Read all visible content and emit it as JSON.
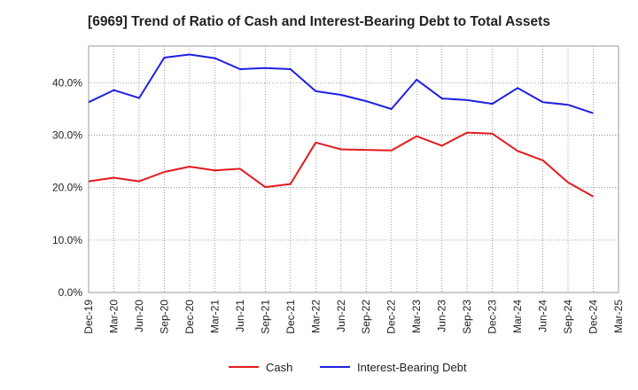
{
  "chart_data": {
    "type": "line",
    "title": "[6969]  Trend of Ratio of Cash and Interest-Bearing Debt to Total Assets",
    "x": [
      "Dec-19",
      "Mar-20",
      "Jun-20",
      "Sep-20",
      "Dec-20",
      "Mar-21",
      "Jun-21",
      "Sep-21",
      "Dec-21",
      "Mar-22",
      "Jun-22",
      "Sep-22",
      "Dec-22",
      "Mar-23",
      "Jun-23",
      "Sep-23",
      "Dec-23",
      "Mar-24",
      "Jun-24",
      "Sep-24",
      "Dec-24",
      "Mar-25"
    ],
    "series": [
      {
        "name": "Cash",
        "color": "#e31a1c",
        "values": [
          21.2,
          21.9,
          21.2,
          23.0,
          24.0,
          23.3,
          23.6,
          20.1,
          20.7,
          28.6,
          27.3,
          27.2,
          27.1,
          29.8,
          28.0,
          30.5,
          30.3,
          27.0,
          25.2,
          21.0,
          18.3,
          null
        ]
      },
      {
        "name": "Interest-Bearing Debt",
        "color": "#1f1fe0",
        "values": [
          36.3,
          38.6,
          37.1,
          44.8,
          45.4,
          44.7,
          42.6,
          42.8,
          42.6,
          38.4,
          37.7,
          36.5,
          35.0,
          40.6,
          37.0,
          36.7,
          36.0,
          39.0,
          36.3,
          35.8,
          34.2,
          null
        ]
      }
    ],
    "yticks": [
      "0.0%",
      "10.0%",
      "20.0%",
      "30.0%",
      "40.0%"
    ],
    "ylim": [
      0,
      47
    ],
    "grid": true,
    "legend_position": "bottom"
  }
}
